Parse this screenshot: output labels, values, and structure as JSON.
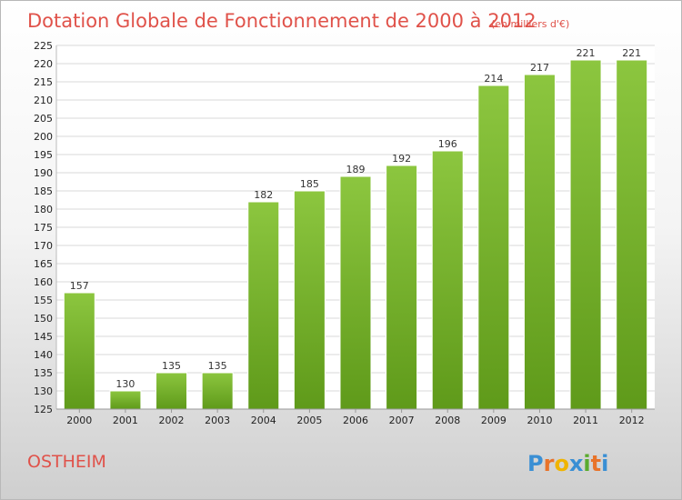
{
  "chart_data": {
    "type": "bar",
    "title": "Dotation Globale de Fonctionnement de 2000 à 2012",
    "subtitle": "(en milliers d'€)",
    "xlabel": "",
    "ylabel": "",
    "categories": [
      "2000",
      "2001",
      "2002",
      "2003",
      "2004",
      "2005",
      "2006",
      "2007",
      "2008",
      "2009",
      "2010",
      "2011",
      "2012"
    ],
    "values": [
      157,
      130,
      135,
      135,
      182,
      185,
      189,
      192,
      196,
      214,
      217,
      221,
      221
    ],
    "ylim": [
      125,
      225
    ],
    "yticks": [
      125,
      130,
      135,
      140,
      145,
      150,
      155,
      160,
      165,
      170,
      175,
      180,
      185,
      190,
      195,
      200,
      205,
      210,
      215,
      220,
      225
    ],
    "grid": true,
    "bar_color": "#8cc63f",
    "bar_color_dark": "#5f9a1a"
  },
  "commune": "OSTHEIM",
  "logo": {
    "letters": [
      "P",
      "r",
      "o",
      "x",
      "i",
      "t",
      "i"
    ],
    "colors": [
      "#3a8fd4",
      "#e8732a",
      "#f0b400",
      "#3a8fd4",
      "#5aab2e",
      "#e8732a",
      "#3a8fd4"
    ]
  },
  "colors": {
    "title": "#e0524a",
    "grid": "#d8d8d8"
  }
}
